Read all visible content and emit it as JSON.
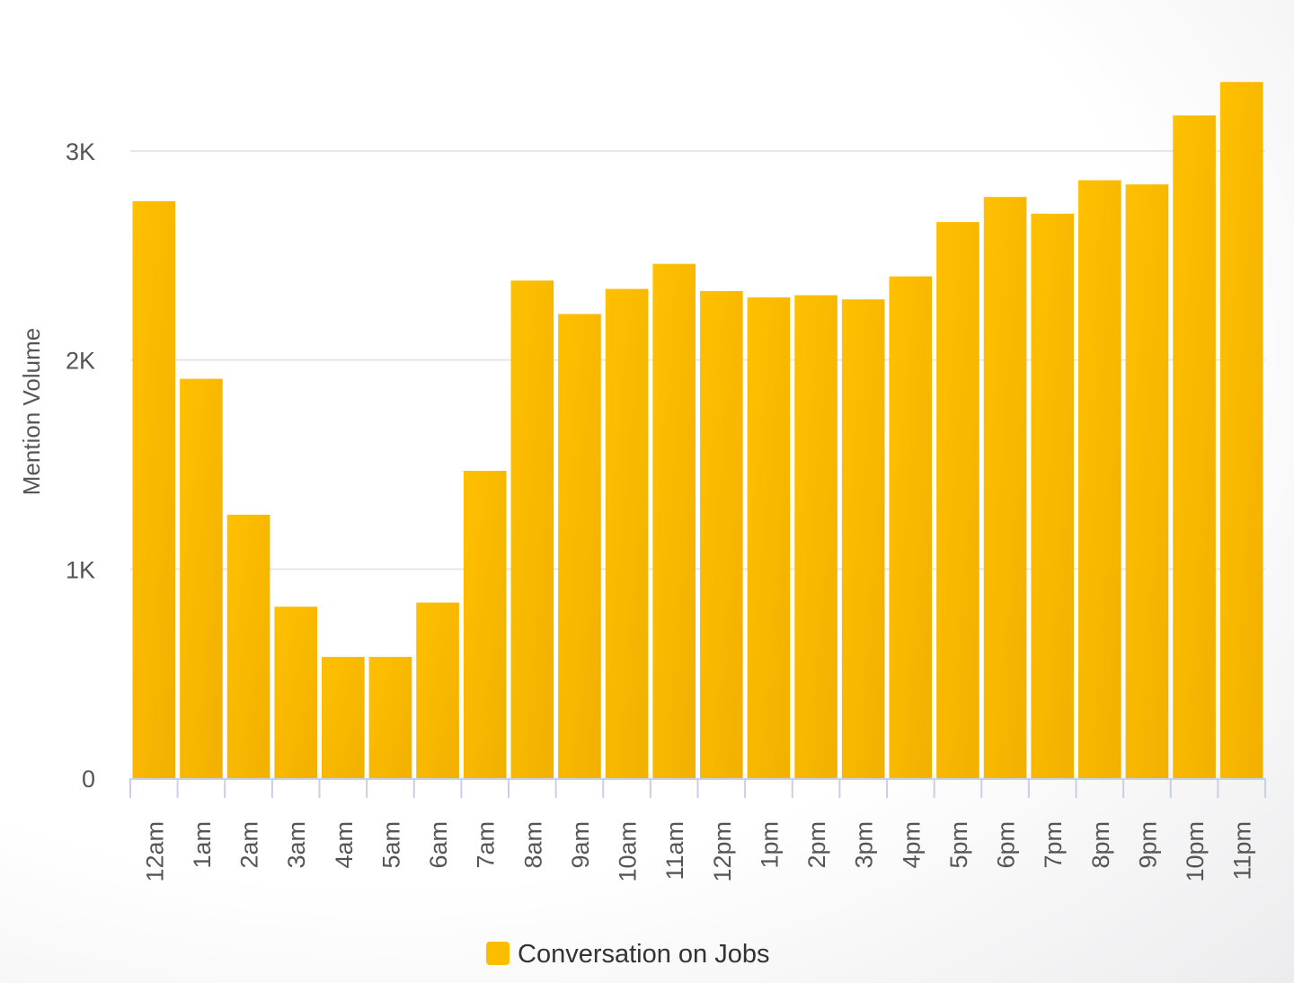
{
  "chart_data": {
    "type": "bar",
    "title": "",
    "xlabel": "",
    "ylabel": "Mention Volume",
    "ylim": [
      0,
      3000
    ],
    "yticks": [
      {
        "value": 0,
        "label": "0"
      },
      {
        "value": 1000,
        "label": "1K"
      },
      {
        "value": 2000,
        "label": "2K"
      },
      {
        "value": 3000,
        "label": "3K"
      }
    ],
    "grid": true,
    "legend_position": "bottom",
    "categories": [
      "12am",
      "1am",
      "2am",
      "3am",
      "4am",
      "5am",
      "6am",
      "7am",
      "8am",
      "9am",
      "10am",
      "11am",
      "12pm",
      "1pm",
      "2pm",
      "3pm",
      "4pm",
      "5pm",
      "6pm",
      "7pm",
      "8pm",
      "9pm",
      "10pm",
      "11pm"
    ],
    "series": [
      {
        "name": "Conversation on Jobs",
        "color": "#fbbd00",
        "values": [
          2760,
          1910,
          1260,
          820,
          580,
          580,
          840,
          1470,
          2380,
          2220,
          2340,
          2460,
          2330,
          2300,
          2310,
          2290,
          2400,
          2660,
          2780,
          2700,
          2860,
          2840,
          3170,
          3330
        ]
      }
    ]
  }
}
